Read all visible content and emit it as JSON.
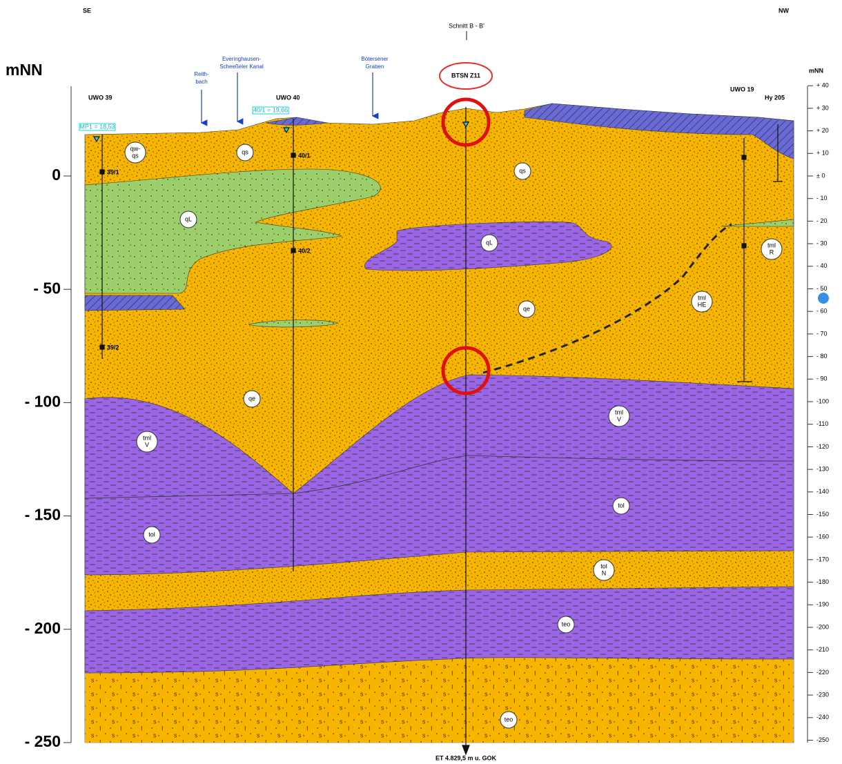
{
  "header": {
    "left": "SE",
    "right": "NW",
    "section": "Schnitt B - B'"
  },
  "axes": {
    "left": {
      "title": "mNN",
      "ticks": [
        {
          "value": 0,
          "label": "0"
        },
        {
          "value": -50,
          "label": "- 50"
        },
        {
          "value": -100,
          "label": "- 100"
        },
        {
          "value": -150,
          "label": "- 150"
        },
        {
          "value": -200,
          "label": "- 200"
        },
        {
          "value": -250,
          "label": "- 250"
        }
      ]
    },
    "right": {
      "title": "mNN",
      "ticks": [
        {
          "value": 40,
          "label": "+ 40"
        },
        {
          "value": 30,
          "label": "+ 30"
        },
        {
          "value": 20,
          "label": "+ 20"
        },
        {
          "value": 10,
          "label": "+ 10"
        },
        {
          "value": 0,
          "label": "± 0"
        },
        {
          "value": -10,
          "label": "- 10"
        },
        {
          "value": -20,
          "label": "- 20"
        },
        {
          "value": -30,
          "label": "- 30"
        },
        {
          "value": -40,
          "label": "- 40"
        },
        {
          "value": -50,
          "label": "- 50"
        },
        {
          "value": -60,
          "label": "- 60"
        },
        {
          "value": -70,
          "label": "- 70"
        },
        {
          "value": -80,
          "label": "- 80"
        },
        {
          "value": -90,
          "label": "- 90"
        },
        {
          "value": -100,
          "label": "-100"
        },
        {
          "value": -110,
          "label": "-110"
        },
        {
          "value": -120,
          "label": "-120"
        },
        {
          "value": -130,
          "label": "-130"
        },
        {
          "value": -140,
          "label": "-140"
        },
        {
          "value": -150,
          "label": "-150"
        },
        {
          "value": -160,
          "label": "-160"
        },
        {
          "value": -170,
          "label": "-170"
        },
        {
          "value": -180,
          "label": "-180"
        },
        {
          "value": -190,
          "label": "-190"
        },
        {
          "value": -200,
          "label": "-200"
        },
        {
          "value": -210,
          "label": "-210"
        },
        {
          "value": -220,
          "label": "-220"
        },
        {
          "value": -230,
          "label": "-230"
        },
        {
          "value": -240,
          "label": "-240"
        },
        {
          "value": -250,
          "label": "-250"
        }
      ]
    }
  },
  "streams": [
    {
      "lines": [
        "Reith-",
        "bach"
      ]
    },
    {
      "lines": [
        "Everinghausen-",
        "Scheeßeler Kanal"
      ]
    },
    {
      "lines": [
        "Bötersener",
        "Graben"
      ]
    }
  ],
  "boreholes": {
    "main": "BTSN Z11",
    "wells": [
      "UWO 39",
      "UWO 40",
      "UWO 19",
      "Hy 205"
    ]
  },
  "screens": [
    "39/1",
    "39/2",
    "40/1",
    "40/2"
  ],
  "water_levels": [
    "MP1 = 18,53",
    "40/1 = 19,66"
  ],
  "units": [
    {
      "lines": [
        "qw-",
        "qs"
      ]
    },
    {
      "lines": [
        "qs"
      ]
    },
    {
      "lines": [
        "qs"
      ]
    },
    {
      "lines": [
        "qL"
      ]
    },
    {
      "lines": [
        "qL"
      ]
    },
    {
      "lines": [
        "qe"
      ]
    },
    {
      "lines": [
        "qe"
      ]
    },
    {
      "lines": [
        "tml",
        "R"
      ]
    },
    {
      "lines": [
        "tml",
        "HE"
      ]
    },
    {
      "lines": [
        "tml",
        "V"
      ]
    },
    {
      "lines": [
        "tml",
        "V"
      ]
    },
    {
      "lines": [
        "tol"
      ]
    },
    {
      "lines": [
        "tol"
      ]
    },
    {
      "lines": [
        "tol",
        "N"
      ]
    },
    {
      "lines": [
        "teo"
      ]
    },
    {
      "lines": [
        "teo"
      ]
    }
  ],
  "bottom_note": "ET 4.829,5 m u. GOK"
}
